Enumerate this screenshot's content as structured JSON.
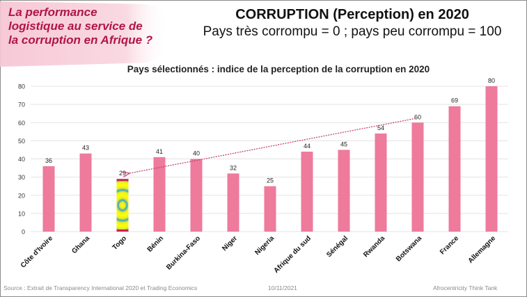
{
  "banner": {
    "lines": [
      "La performance",
      "logistique au service de",
      "la corruption en Afrique ?"
    ]
  },
  "header": {
    "title": "CORRUPTION (Perception) en 2020",
    "subtitle": "Pays très corrompu = 0 ; pays peu corrompu = 100"
  },
  "footer": {
    "source": "Source : Extrait de Transparency International 2020 et Trading Economics",
    "date": "10/11/2021",
    "author": "Afrocentricity Think Tank"
  },
  "colors": {
    "bar": "#ee7a9c",
    "banner_text": "#b0154a",
    "arrow": "#c2456e",
    "grid": "#e3e3e3"
  },
  "chart_data": {
    "type": "bar",
    "title": "Pays sélectionnés : indice de la perception de la corruption en 2020",
    "xlabel": "",
    "ylabel": "",
    "categories": [
      "Côte d'Ivoire",
      "Ghana",
      "Togo",
      "Bénin",
      "Burkina-Faso",
      "Niger",
      "Nigeria",
      "Afrique du sud",
      "Sénégal",
      "Rwanda",
      "Botswana",
      "France",
      "Allemagne"
    ],
    "values": [
      36,
      43,
      29,
      41,
      40,
      32,
      25,
      44,
      45,
      54,
      60,
      69,
      80
    ],
    "data_labels": [
      "36",
      "43",
      "29",
      "41",
      "40",
      "32",
      "25",
      "44",
      "45",
      "54",
      "60",
      "69",
      "80"
    ],
    "highlighted_category": "Togo",
    "ylim": [
      0,
      80
    ],
    "yticks": [
      0,
      10,
      20,
      30,
      40,
      50,
      60,
      70,
      80
    ],
    "grid": true,
    "legend": "none",
    "annotations": [
      {
        "type": "dotted-arrow",
        "from_category": "Botswana",
        "to_category": "Togo"
      }
    ]
  }
}
